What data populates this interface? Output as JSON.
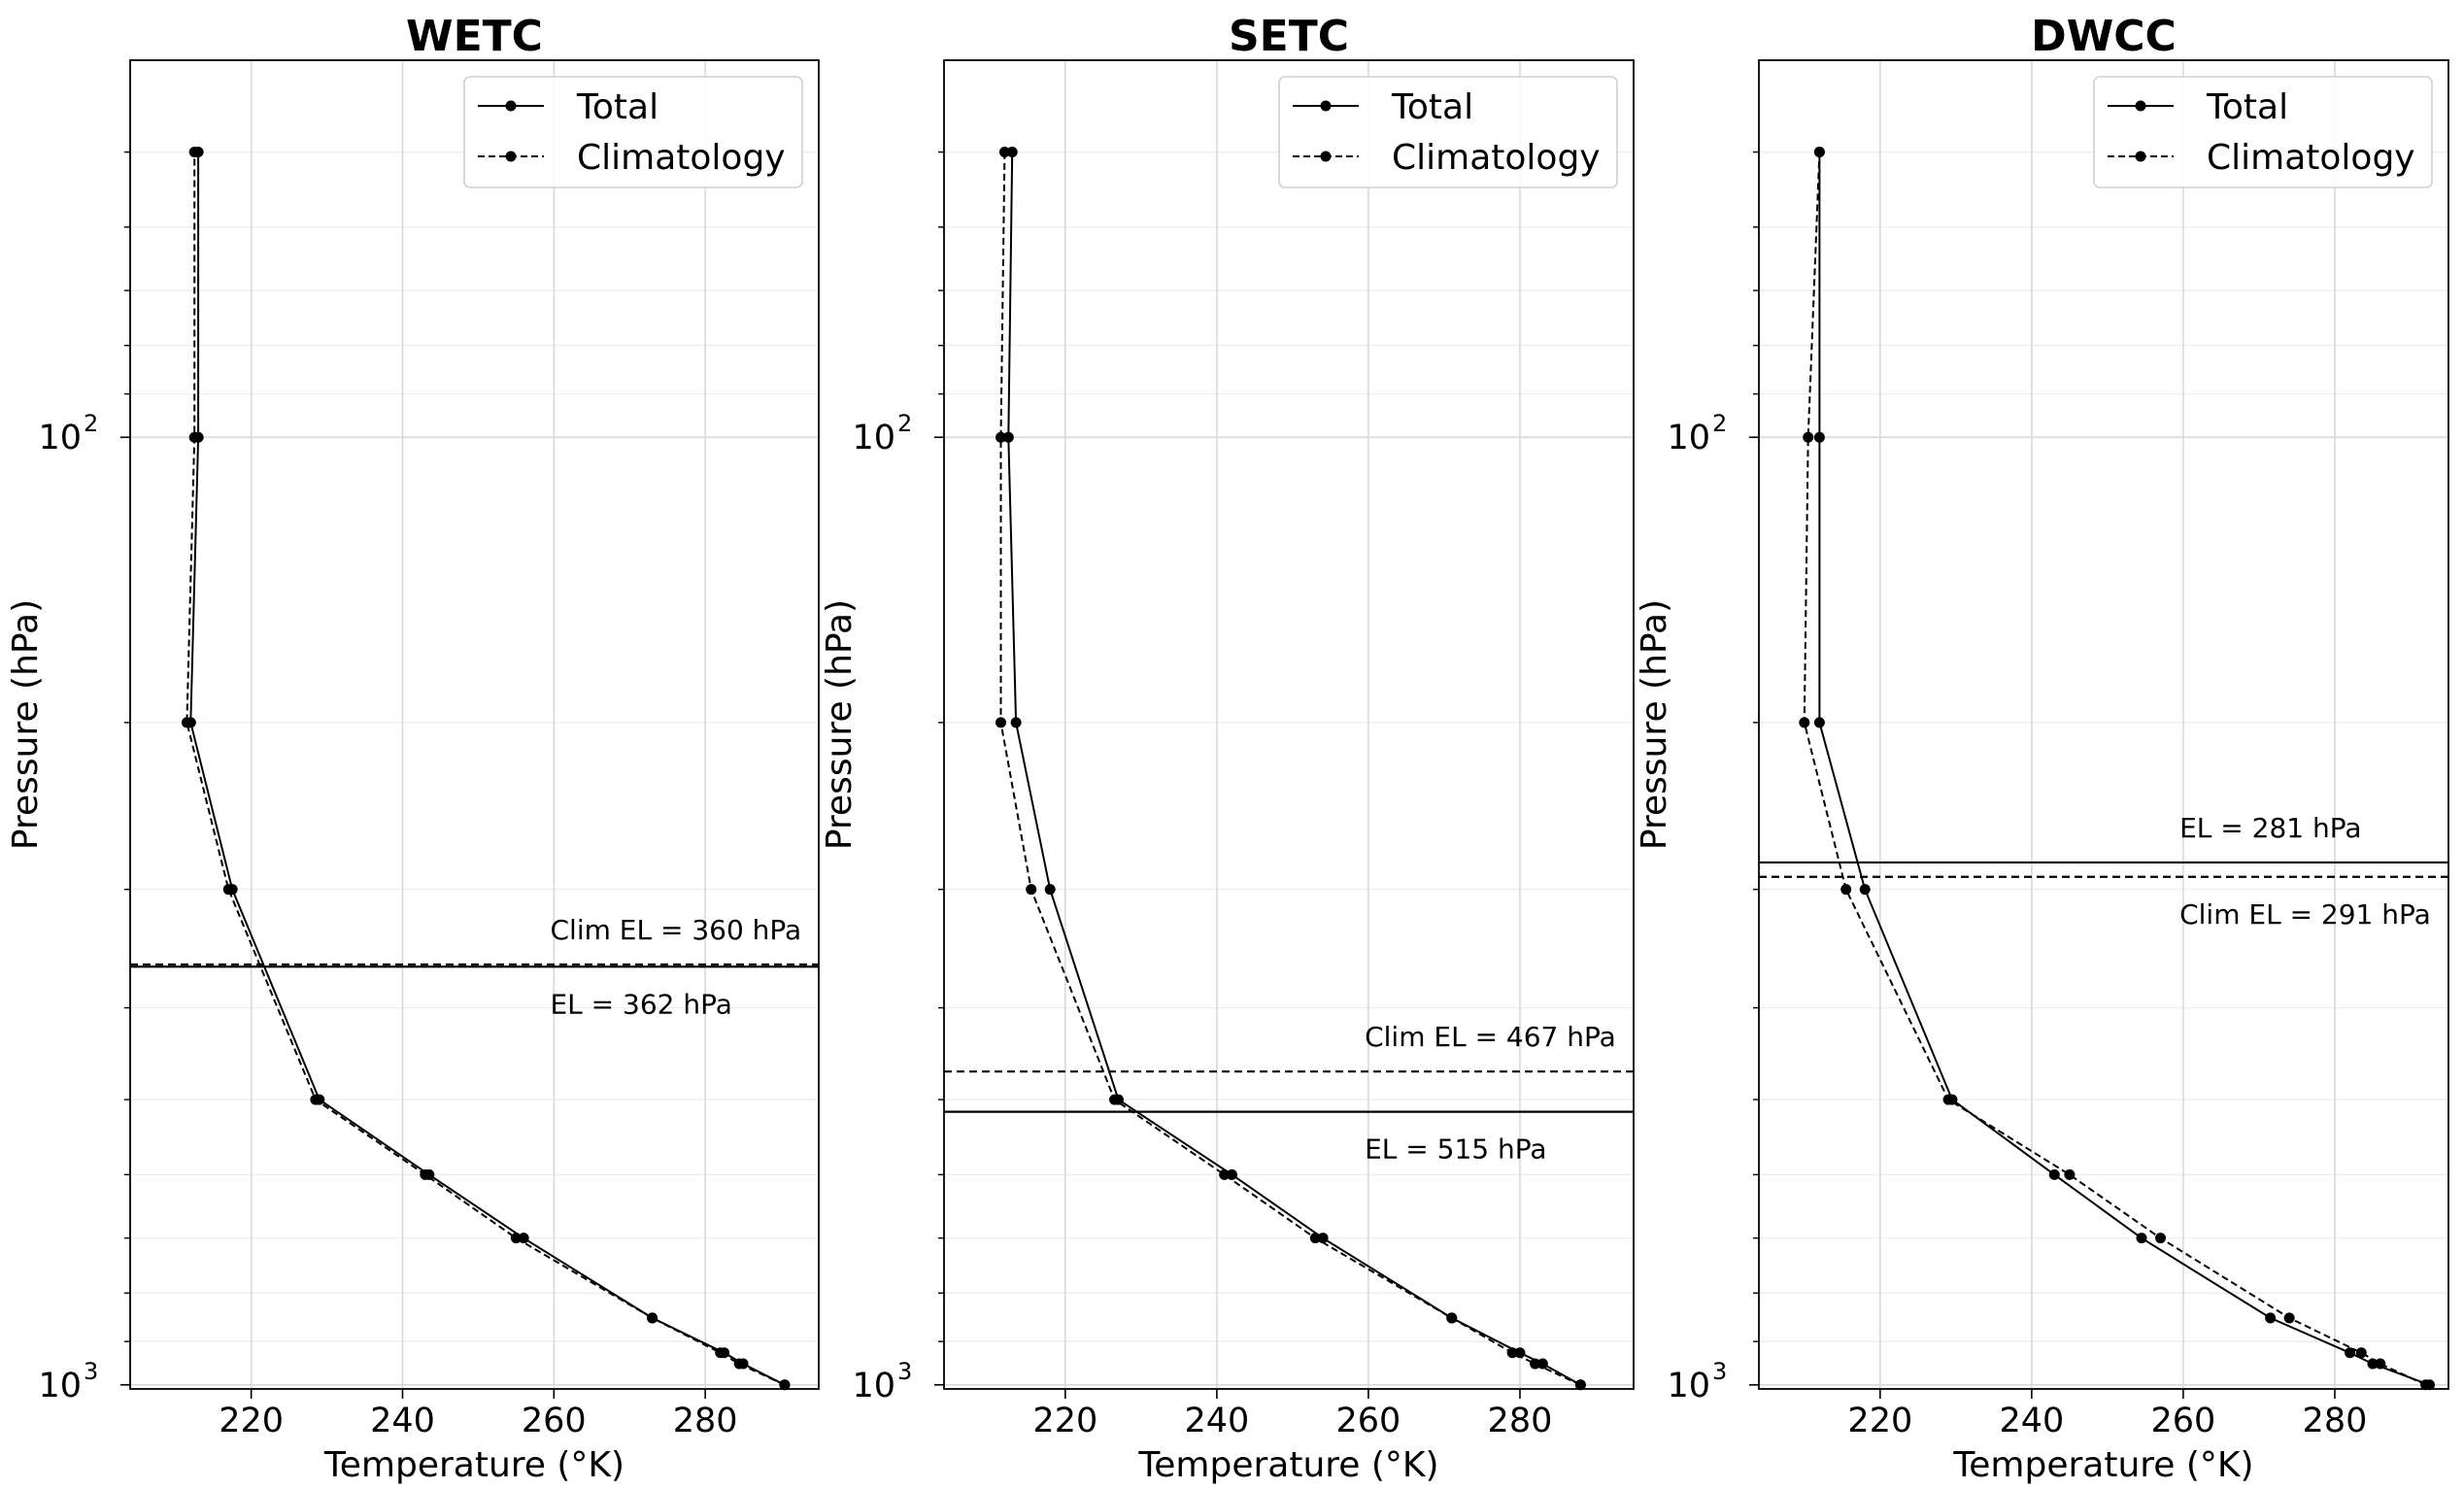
{
  "chart_data": [
    {
      "type": "line",
      "title": "WETC",
      "xlabel": "Temperature (°K)",
      "ylabel": "Pressure (hPa)",
      "xlim": [
        204,
        295
      ],
      "ylim": [
        1010,
        40
      ],
      "y_scale": "log",
      "y_inverted": true,
      "grid": true,
      "legend_position": "top-right",
      "x_ticks": [
        220,
        240,
        260,
        280
      ],
      "y_ticks": [
        100,
        1000
      ],
      "series": [
        {
          "name": "Total",
          "style": "solid",
          "color": "#000000",
          "points": [
            [
              290.5,
              1000
            ],
            [
              285,
              950
            ],
            [
              282.5,
              925
            ],
            [
              273,
              850
            ],
            [
              256,
              700
            ],
            [
              243.5,
              600
            ],
            [
              229,
              500
            ],
            [
              217.5,
              300
            ],
            [
              212,
              200
            ],
            [
              213,
              100
            ],
            [
              213,
              50
            ]
          ]
        },
        {
          "name": "Climatology",
          "style": "dashed",
          "color": "#000000",
          "points": [
            [
              290.5,
              1000
            ],
            [
              284.5,
              950
            ],
            [
              282,
              925
            ],
            [
              273,
              850
            ],
            [
              255,
              700
            ],
            [
              243,
              600
            ],
            [
              228.5,
              500
            ],
            [
              217,
              300
            ],
            [
              211.5,
              200
            ],
            [
              212.5,
              100
            ],
            [
              212.5,
              50
            ]
          ]
        }
      ],
      "hlines": [
        {
          "value": 360,
          "style": "dashed",
          "label": "Clim EL = 360 hPa",
          "label_pos": "above"
        },
        {
          "value": 362,
          "style": "solid",
          "label": "EL = 362 hPa",
          "label_pos": "below"
        }
      ]
    },
    {
      "type": "line",
      "title": "SETC",
      "xlabel": "Temperature (°K)",
      "ylabel": "Pressure (hPa)",
      "xlim": [
        204,
        295
      ],
      "ylim": [
        1010,
        40
      ],
      "y_scale": "log",
      "y_inverted": true,
      "grid": true,
      "legend_position": "top-right",
      "x_ticks": [
        220,
        240,
        260,
        280
      ],
      "y_ticks": [
        100,
        1000
      ],
      "series": [
        {
          "name": "Total",
          "style": "solid",
          "color": "#000000",
          "points": [
            [
              288,
              1000
            ],
            [
              283,
              950
            ],
            [
              280,
              925
            ],
            [
              271,
              850
            ],
            [
              254,
              700
            ],
            [
              242,
              600
            ],
            [
              227,
              500
            ],
            [
              218,
              300
            ],
            [
              213.5,
              200
            ],
            [
              212.5,
              100
            ],
            [
              213,
              50
            ]
          ]
        },
        {
          "name": "Climatology",
          "style": "dashed",
          "color": "#000000",
          "points": [
            [
              288,
              1000
            ],
            [
              282,
              950
            ],
            [
              279,
              925
            ],
            [
              271,
              850
            ],
            [
              253,
              700
            ],
            [
              241,
              600
            ],
            [
              226.5,
              500
            ],
            [
              215.5,
              300
            ],
            [
              211.5,
              200
            ],
            [
              211.5,
              100
            ],
            [
              212,
              50
            ]
          ]
        }
      ],
      "hlines": [
        {
          "value": 467,
          "style": "dashed",
          "label": "Clim EL = 467 hPa",
          "label_pos": "above"
        },
        {
          "value": 515,
          "style": "solid",
          "label": "EL = 515 hPa",
          "label_pos": "below"
        }
      ]
    },
    {
      "type": "line",
      "title": "DWCC",
      "xlabel": "Temperature (°K)",
      "ylabel": "Pressure (hPa)",
      "xlim": [
        204,
        295
      ],
      "ylim": [
        1010,
        40
      ],
      "y_scale": "log",
      "y_inverted": true,
      "grid": true,
      "legend_position": "top-right",
      "x_ticks": [
        220,
        240,
        260,
        280
      ],
      "y_ticks": [
        100,
        1000
      ],
      "series": [
        {
          "name": "Total",
          "style": "solid",
          "color": "#000000",
          "points": [
            [
              292.5,
              1000
            ],
            [
              285,
              950
            ],
            [
              282,
              925
            ],
            [
              271.5,
              850
            ],
            [
              254.5,
              700
            ],
            [
              243,
              600
            ],
            [
              229.5,
              500
            ],
            [
              218,
              300
            ],
            [
              212,
              200
            ],
            [
              212,
              100
            ],
            [
              212,
              50
            ]
          ]
        },
        {
          "name": "Climatology",
          "style": "dashed",
          "color": "#000000",
          "points": [
            [
              292,
              1000
            ],
            [
              286,
              950
            ],
            [
              283.5,
              925
            ],
            [
              274,
              850
            ],
            [
              257,
              700
            ],
            [
              245,
              600
            ],
            [
              229,
              500
            ],
            [
              215.5,
              300
            ],
            [
              210,
              200
            ],
            [
              210.5,
              100
            ],
            [
              212,
              50
            ]
          ]
        }
      ],
      "hlines": [
        {
          "value": 281,
          "style": "solid",
          "label": "EL = 281 hPa",
          "label_pos": "above"
        },
        {
          "value": 291,
          "style": "dashed",
          "label": "Clim EL = 291 hPa",
          "label_pos": "below"
        }
      ]
    }
  ]
}
